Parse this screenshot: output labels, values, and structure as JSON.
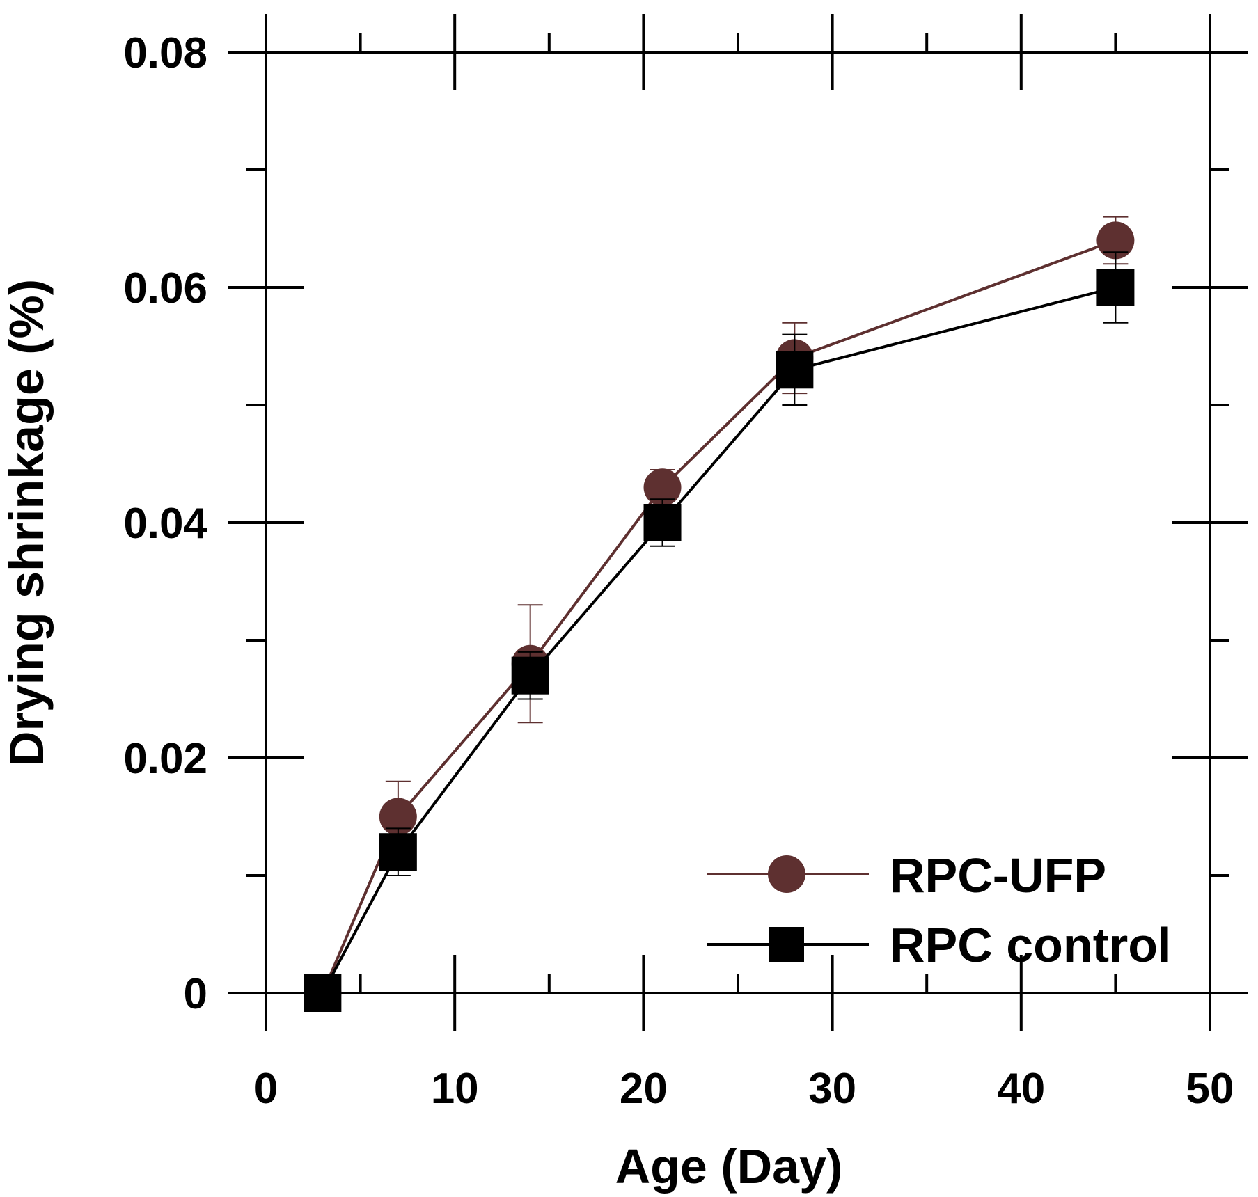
{
  "chart_data": {
    "type": "line",
    "title": "",
    "xlabel": "Age (Day)",
    "ylabel": "Drying shrinkage (%)",
    "xlim": [
      0,
      50
    ],
    "ylim": [
      0,
      0.08
    ],
    "x_ticks": [
      0,
      10,
      20,
      30,
      40,
      50
    ],
    "x_tick_labels": [
      "0",
      "10",
      "20",
      "30",
      "40",
      "50"
    ],
    "y_ticks": [
      0,
      0.02,
      0.04,
      0.06,
      0.08
    ],
    "y_tick_labels": [
      "0",
      "0.02",
      "0.04",
      "0.06",
      "0.08"
    ],
    "x_minor_step": 5,
    "y_minor_step": 0.01,
    "grid": false,
    "legend_position": "bottom-right",
    "series": [
      {
        "name": "RPC-UFP",
        "marker": "circle",
        "color": "#5e3030",
        "x": [
          3,
          7,
          14,
          21,
          28,
          45
        ],
        "values": [
          0,
          0.015,
          0.028,
          0.043,
          0.054,
          0.064
        ],
        "error": [
          0,
          0.003,
          0.005,
          0.0015,
          0.003,
          0.002
        ]
      },
      {
        "name": "RPC control",
        "marker": "square",
        "color": "#000000",
        "x": [
          3,
          7,
          14,
          21,
          28,
          45
        ],
        "values": [
          0,
          0.012,
          0.027,
          0.04,
          0.053,
          0.06
        ],
        "error": [
          0,
          0.002,
          0.002,
          0.002,
          0.003,
          0.003
        ]
      }
    ]
  }
}
